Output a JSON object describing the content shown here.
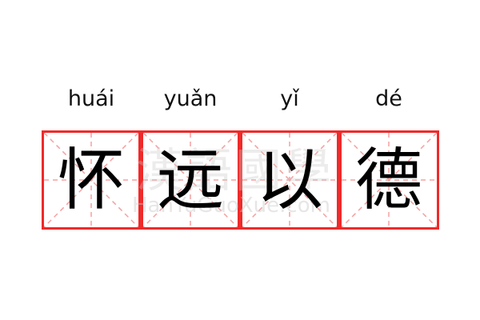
{
  "idiom": [
    {
      "pinyin": "huái",
      "char": "怀"
    },
    {
      "pinyin": "yuǎn",
      "char": "远"
    },
    {
      "pinyin": "yǐ",
      "char": "以"
    },
    {
      "pinyin": "dé",
      "char": "德"
    }
  ],
  "watermark": {
    "cn": "漢語國學",
    "en": "HanYuGuoXue.com"
  },
  "colors": {
    "grid_border": "#f02a2a",
    "grid_guides": "#f5a0a0",
    "text": "#000000"
  }
}
